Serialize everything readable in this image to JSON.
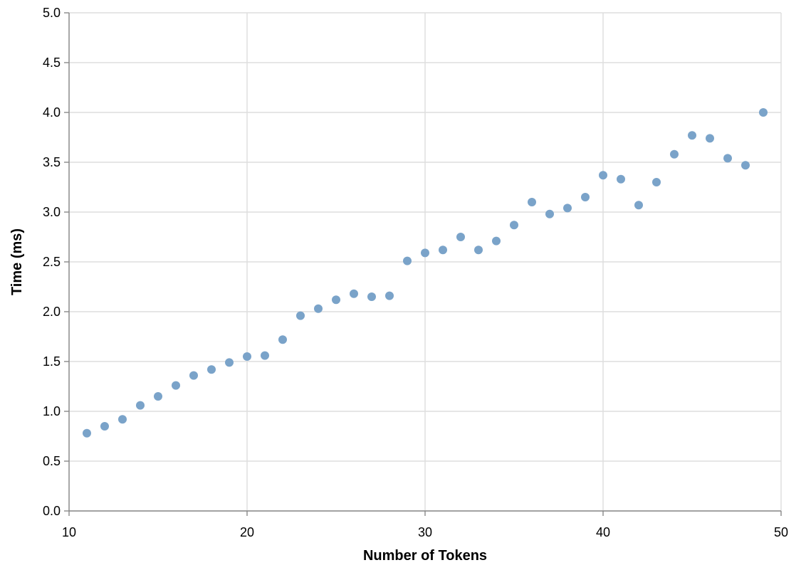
{
  "chart_data": {
    "type": "scatter",
    "title": "",
    "xlabel": "Number of Tokens",
    "ylabel": "Time (ms)",
    "xlim": [
      10,
      50
    ],
    "ylim": [
      0,
      5
    ],
    "x_ticks": [
      10,
      20,
      30,
      40,
      50
    ],
    "y_ticks": [
      "0.0",
      "0.5",
      "1.0",
      "1.5",
      "2.0",
      "2.5",
      "3.0",
      "3.5",
      "4.0",
      "4.5",
      "5.0"
    ],
    "grid": true,
    "legend": "none",
    "point_color": "#7aa3c9",
    "series": [
      {
        "x": [
          11,
          12,
          13,
          14,
          15,
          16,
          17,
          18,
          19,
          20,
          21,
          22,
          23,
          24,
          25,
          26,
          27,
          28,
          29,
          30,
          31,
          32,
          33,
          34,
          35,
          36,
          37,
          38,
          39,
          40,
          41,
          42,
          43,
          44,
          45,
          46,
          47,
          48,
          49
        ],
        "y": [
          0.78,
          0.85,
          0.92,
          1.06,
          1.15,
          1.26,
          1.36,
          1.42,
          1.49,
          1.55,
          1.56,
          1.72,
          1.96,
          2.03,
          2.12,
          2.18,
          2.15,
          2.16,
          2.51,
          2.59,
          2.62,
          2.75,
          2.62,
          2.71,
          2.87,
          3.1,
          2.98,
          3.04,
          3.15,
          3.37,
          3.33,
          3.07,
          3.3,
          3.58,
          3.77,
          3.74,
          3.54,
          3.47,
          4.0
        ]
      }
    ]
  }
}
